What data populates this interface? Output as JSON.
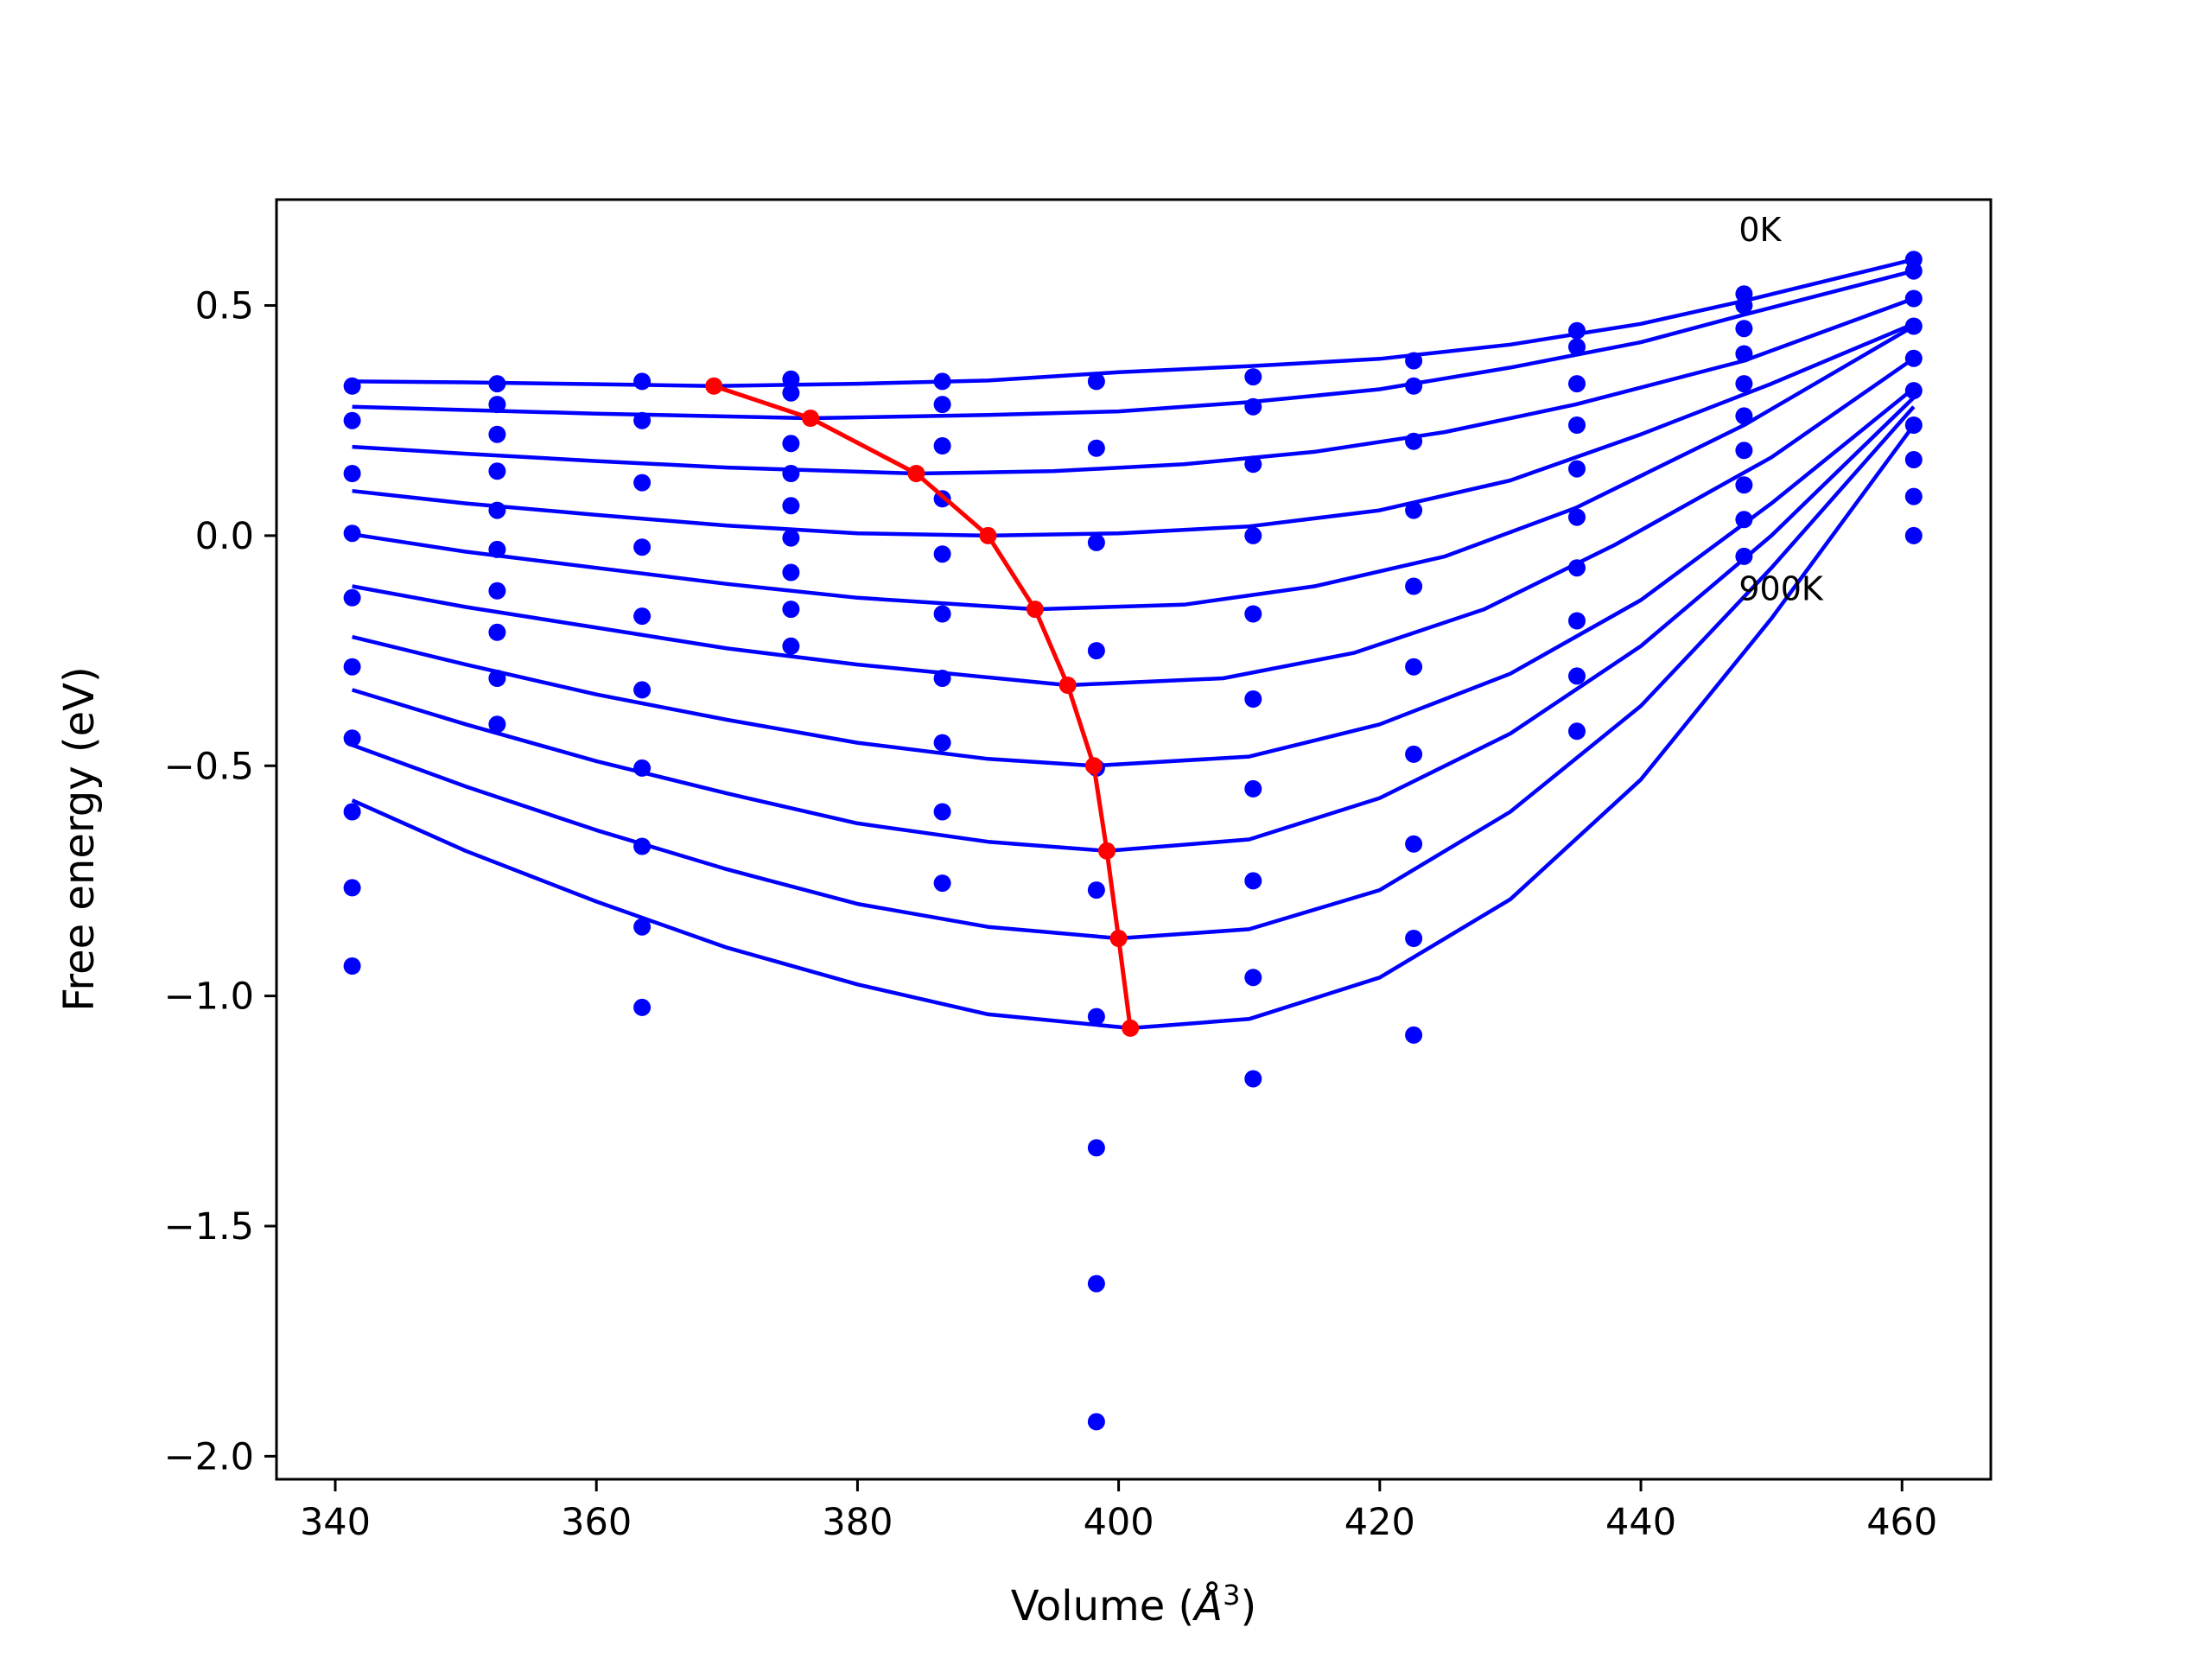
{
  "chart_data": {
    "type": "scatter",
    "title": "",
    "xlabel": "Volume (",
    "xlabel_symbol": "Å",
    "xlabel_power": "3",
    "xlabel_close": ")",
    "ylabel": "Free energy (eV)",
    "xlim": [
      335.5,
      466.8
    ],
    "ylim": [
      -2.05,
      0.73
    ],
    "xticks": [
      340,
      360,
      380,
      400,
      420,
      440,
      460
    ],
    "yticks": [
      0.5,
      0.0,
      -0.5,
      -1.0,
      -1.5,
      -2.0
    ],
    "xtick_labels": [
      "340",
      "360",
      "380",
      "400",
      "420",
      "440",
      "460"
    ],
    "ytick_labels": [
      "0.5",
      "0.0",
      "−0.5",
      "−1.0",
      "−1.5",
      "−2.0"
    ],
    "grid": false,
    "colors": {
      "points": "#0000ff",
      "fits": "#0000ff",
      "minima": "#ff0000"
    },
    "annotations": [
      {
        "text": "0K",
        "x": 447.5,
        "y": 0.64
      },
      {
        "text": "900K",
        "x": 447.5,
        "y": -0.14
      }
    ],
    "scatter_points": [
      [
        341.3,
        0.325
      ],
      [
        341.3,
        0.25
      ],
      [
        341.3,
        0.135
      ],
      [
        341.3,
        0.005
      ],
      [
        341.3,
        -0.135
      ],
      [
        341.3,
        -0.285
      ],
      [
        341.3,
        -0.44
      ],
      [
        341.3,
        -0.6
      ],
      [
        341.3,
        -0.765
      ],
      [
        341.3,
        -0.935
      ],
      [
        352.4,
        0.33
      ],
      [
        352.4,
        0.285
      ],
      [
        352.4,
        0.22
      ],
      [
        352.4,
        0.14
      ],
      [
        352.4,
        0.055
      ],
      [
        352.4,
        -0.03
      ],
      [
        352.4,
        -0.12
      ],
      [
        352.4,
        -0.21
      ],
      [
        352.4,
        -0.31
      ],
      [
        352.4,
        -0.41
      ],
      [
        363.5,
        0.335
      ],
      [
        363.5,
        0.25
      ],
      [
        363.5,
        0.115
      ],
      [
        363.5,
        -0.025
      ],
      [
        363.5,
        -0.175
      ],
      [
        363.5,
        -0.335
      ],
      [
        363.5,
        -0.505
      ],
      [
        363.5,
        -0.675
      ],
      [
        363.5,
        -0.85
      ],
      [
        363.5,
        -1.025
      ],
      [
        374.9,
        0.34
      ],
      [
        374.9,
        0.31
      ],
      [
        374.9,
        0.2
      ],
      [
        374.9,
        0.135
      ],
      [
        374.9,
        0.065
      ],
      [
        374.9,
        -0.005
      ],
      [
        374.9,
        -0.08
      ],
      [
        374.9,
        -0.16
      ],
      [
        374.9,
        -0.24
      ],
      [
        386.5,
        0.335
      ],
      [
        386.5,
        0.285
      ],
      [
        386.5,
        0.195
      ],
      [
        386.5,
        0.08
      ],
      [
        386.5,
        -0.04
      ],
      [
        386.5,
        -0.17
      ],
      [
        386.5,
        -0.31
      ],
      [
        386.5,
        -0.45
      ],
      [
        386.5,
        -0.6
      ],
      [
        386.5,
        -0.755
      ],
      [
        398.3,
        0.335
      ],
      [
        398.3,
        0.19
      ],
      [
        398.3,
        -0.015
      ],
      [
        398.3,
        -0.25
      ],
      [
        398.3,
        -0.505
      ],
      [
        398.3,
        -0.77
      ],
      [
        398.3,
        -1.045
      ],
      [
        398.3,
        -1.33
      ],
      [
        398.3,
        -1.625
      ],
      [
        398.3,
        -1.925
      ],
      [
        410.3,
        0.345
      ],
      [
        410.3,
        0.28
      ],
      [
        410.3,
        0.155
      ],
      [
        410.3,
        0.0
      ],
      [
        410.3,
        -0.17
      ],
      [
        410.3,
        -0.355
      ],
      [
        410.3,
        -0.55
      ],
      [
        410.3,
        -0.75
      ],
      [
        410.3,
        -0.96
      ],
      [
        410.3,
        -1.18
      ],
      [
        422.6,
        0.38
      ],
      [
        422.6,
        0.325
      ],
      [
        422.6,
        0.205
      ],
      [
        422.6,
        0.055
      ],
      [
        422.6,
        -0.11
      ],
      [
        422.6,
        -0.285
      ],
      [
        422.6,
        -0.475
      ],
      [
        422.6,
        -0.67
      ],
      [
        422.6,
        -0.875
      ],
      [
        422.6,
        -1.085
      ],
      [
        435.1,
        0.445
      ],
      [
        435.1,
        0.41
      ],
      [
        435.1,
        0.33
      ],
      [
        435.1,
        0.24
      ],
      [
        435.1,
        0.145
      ],
      [
        435.1,
        0.04
      ],
      [
        435.1,
        -0.07
      ],
      [
        435.1,
        -0.185
      ],
      [
        435.1,
        -0.305
      ],
      [
        435.1,
        -0.425
      ],
      [
        447.9,
        0.525
      ],
      [
        447.9,
        0.5
      ],
      [
        447.9,
        0.45
      ],
      [
        447.9,
        0.395
      ],
      [
        447.9,
        0.33
      ],
      [
        447.9,
        0.26
      ],
      [
        447.9,
        0.185
      ],
      [
        447.9,
        0.11
      ],
      [
        447.9,
        0.035
      ],
      [
        447.9,
        -0.045
      ],
      [
        460.9,
        0.6
      ],
      [
        460.9,
        0.575
      ],
      [
        460.9,
        0.515
      ],
      [
        460.9,
        0.455
      ],
      [
        460.9,
        0.385
      ],
      [
        460.9,
        0.315
      ],
      [
        460.9,
        0.24
      ],
      [
        460.9,
        0.165
      ],
      [
        460.9,
        0.085
      ],
      [
        460.9,
        0.0
      ]
    ],
    "fit_curves": [
      [
        [
          341.3,
          0.335
        ],
        [
          350,
          0.333
        ],
        [
          360,
          0.329
        ],
        [
          369,
          0.325
        ],
        [
          380,
          0.33
        ],
        [
          390,
          0.337
        ],
        [
          400,
          0.355
        ],
        [
          410,
          0.368
        ],
        [
          420,
          0.384
        ],
        [
          430,
          0.415
        ],
        [
          440,
          0.46
        ],
        [
          447.9,
          0.51
        ],
        [
          460.9,
          0.6
        ]
      ],
      [
        [
          341.3,
          0.28
        ],
        [
          350,
          0.273
        ],
        [
          360,
          0.265
        ],
        [
          376.4,
          0.255
        ],
        [
          390,
          0.262
        ],
        [
          400,
          0.27
        ],
        [
          410,
          0.29
        ],
        [
          420,
          0.318
        ],
        [
          430,
          0.365
        ],
        [
          440,
          0.42
        ],
        [
          447.9,
          0.48
        ],
        [
          460.9,
          0.575
        ]
      ],
      [
        [
          341.3,
          0.193
        ],
        [
          350,
          0.178
        ],
        [
          360,
          0.162
        ],
        [
          370,
          0.148
        ],
        [
          384.5,
          0.135
        ],
        [
          395,
          0.14
        ],
        [
          405,
          0.155
        ],
        [
          415,
          0.182
        ],
        [
          425,
          0.225
        ],
        [
          435,
          0.285
        ],
        [
          447.9,
          0.38
        ],
        [
          460.9,
          0.515
        ]
      ],
      [
        [
          341.3,
          0.097
        ],
        [
          350,
          0.07
        ],
        [
          360,
          0.045
        ],
        [
          370,
          0.022
        ],
        [
          380,
          0.005
        ],
        [
          390,
          0.0
        ],
        [
          400,
          0.005
        ],
        [
          410,
          0.02
        ],
        [
          420,
          0.055
        ],
        [
          430,
          0.12
        ],
        [
          440,
          0.22
        ],
        [
          450,
          0.33
        ],
        [
          460.9,
          0.46
        ]
      ],
      [
        [
          341.3,
          0.003
        ],
        [
          350,
          -0.035
        ],
        [
          360,
          -0.07
        ],
        [
          370,
          -0.105
        ],
        [
          380,
          -0.135
        ],
        [
          393.6,
          -0.16
        ],
        [
          405,
          -0.15
        ],
        [
          415,
          -0.11
        ],
        [
          425,
          -0.045
        ],
        [
          435,
          0.06
        ],
        [
          447.9,
          0.24
        ],
        [
          460.9,
          0.455
        ]
      ],
      [
        [
          341.3,
          -0.11
        ],
        [
          350,
          -0.155
        ],
        [
          360,
          -0.2
        ],
        [
          370,
          -0.245
        ],
        [
          380,
          -0.28
        ],
        [
          396.1,
          -0.325
        ],
        [
          408,
          -0.31
        ],
        [
          418,
          -0.255
        ],
        [
          428,
          -0.16
        ],
        [
          438,
          -0.02
        ],
        [
          450,
          0.17
        ],
        [
          460.9,
          0.385
        ]
      ],
      [
        [
          341.3,
          -0.22
        ],
        [
          350,
          -0.28
        ],
        [
          360,
          -0.345
        ],
        [
          370,
          -0.4
        ],
        [
          380,
          -0.45
        ],
        [
          390,
          -0.485
        ],
        [
          398.1,
          -0.5
        ],
        [
          410,
          -0.48
        ],
        [
          420,
          -0.41
        ],
        [
          430,
          -0.3
        ],
        [
          440,
          -0.14
        ],
        [
          450,
          0.07
        ],
        [
          460.9,
          0.32
        ]
      ],
      [
        [
          341.3,
          -0.335
        ],
        [
          350,
          -0.41
        ],
        [
          360,
          -0.49
        ],
        [
          370,
          -0.56
        ],
        [
          380,
          -0.625
        ],
        [
          390,
          -0.665
        ],
        [
          399.1,
          -0.685
        ],
        [
          410,
          -0.66
        ],
        [
          420,
          -0.57
        ],
        [
          430,
          -0.43
        ],
        [
          440,
          -0.24
        ],
        [
          450,
          0.0
        ],
        [
          460.9,
          0.3
        ]
      ],
      [
        [
          341.3,
          -0.455
        ],
        [
          350,
          -0.545
        ],
        [
          360,
          -0.64
        ],
        [
          370,
          -0.725
        ],
        [
          380,
          -0.8
        ],
        [
          390,
          -0.85
        ],
        [
          400,
          -0.875
        ],
        [
          410,
          -0.855
        ],
        [
          420,
          -0.77
        ],
        [
          430,
          -0.6
        ],
        [
          440,
          -0.37
        ],
        [
          450,
          -0.07
        ],
        [
          460.9,
          0.28
        ]
      ],
      [
        [
          341.3,
          -0.575
        ],
        [
          350,
          -0.685
        ],
        [
          360,
          -0.795
        ],
        [
          370,
          -0.895
        ],
        [
          380,
          -0.975
        ],
        [
          390,
          -1.04
        ],
        [
          400.9,
          -1.07
        ],
        [
          410,
          -1.05
        ],
        [
          420,
          -0.96
        ],
        [
          430,
          -0.79
        ],
        [
          440,
          -0.53
        ],
        [
          450,
          -0.18
        ],
        [
          460.9,
          0.24
        ]
      ]
    ],
    "minima_line": [
      [
        369.0,
        0.325
      ],
      [
        376.4,
        0.255
      ],
      [
        384.5,
        0.135
      ],
      [
        390.0,
        0.0
      ],
      [
        393.6,
        -0.16
      ],
      [
        396.1,
        -0.325
      ],
      [
        398.1,
        -0.5
      ],
      [
        399.1,
        -0.685
      ],
      [
        400.0,
        -0.875
      ],
      [
        400.9,
        -1.07
      ]
    ]
  }
}
